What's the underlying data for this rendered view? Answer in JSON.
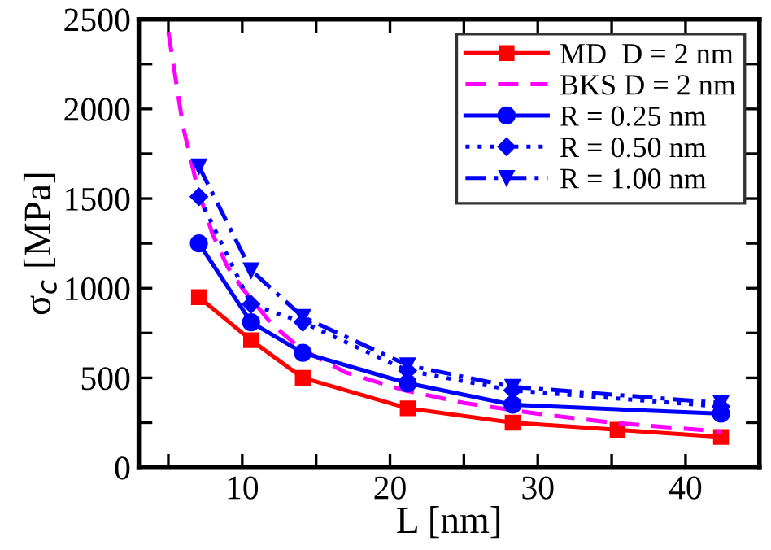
{
  "chart_data": {
    "type": "line",
    "xlabel": "L [nm]",
    "ylabel": "σ$_{c}$ [MPa]",
    "xlim": [
      3,
      45
    ],
    "ylim": [
      0,
      2500
    ],
    "xticks": [
      {
        "value": 5,
        "label": null
      },
      10,
      {
        "value": 15,
        "label": null
      },
      20,
      {
        "value": 25,
        "label": null
      },
      30,
      {
        "value": 35,
        "label": null
      },
      40
    ],
    "yticks": [
      0,
      {
        "value": 250,
        "label": null
      },
      500,
      {
        "value": 750,
        "label": null
      },
      1000,
      {
        "value": 1250,
        "label": null
      },
      1500,
      {
        "value": 1750,
        "label": null
      },
      2000,
      {
        "value": 2250,
        "label": null
      },
      2500
    ],
    "grid": false,
    "legend": "top right",
    "series": [
      {
        "name": "MD  D = 2 nm",
        "color": "#ff0000",
        "marker": "square",
        "line_style": "solid",
        "x": [
          7.07,
          10.6,
          14.1,
          21.2,
          28.3,
          35.4,
          42.4
        ],
        "values": [
          950,
          710,
          500,
          330,
          250,
          210,
          170
        ]
      },
      {
        "name": "BKS D = 2 nm",
        "color": "#ff00ff",
        "marker": "none",
        "line_style": "dashed",
        "x": [
          5,
          6,
          7,
          8,
          9,
          10,
          12,
          14,
          17,
          21,
          25,
          30,
          35,
          42.4
        ],
        "values": [
          2430,
          1900,
          1550,
          1300,
          1120,
          1000,
          800,
          660,
          530,
          430,
          360,
          300,
          250,
          200
        ]
      },
      {
        "name": "R = 0.25 nm",
        "color": "#0000ff",
        "marker": "circle",
        "line_style": "solid",
        "x": [
          7.07,
          10.6,
          14.1,
          21.2,
          28.3,
          42.4
        ],
        "values": [
          1250,
          810,
          640,
          470,
          350,
          300
        ]
      },
      {
        "name": "R = 0.50 nm",
        "color": "#0000ff",
        "marker": "diamond",
        "line_style": "dotted",
        "x": [
          7.07,
          10.6,
          14.1,
          21.2,
          28.3,
          42.4
        ],
        "values": [
          1510,
          910,
          810,
          540,
          430,
          340
        ]
      },
      {
        "name": "R = 1.00 nm",
        "color": "#0000ff",
        "marker": "triangle",
        "line_style": "dashdot",
        "x": [
          7.07,
          10.6,
          14.1,
          21.2,
          28.3,
          42.4
        ],
        "values": [
          1680,
          1100,
          840,
          570,
          450,
          360
        ]
      }
    ]
  }
}
